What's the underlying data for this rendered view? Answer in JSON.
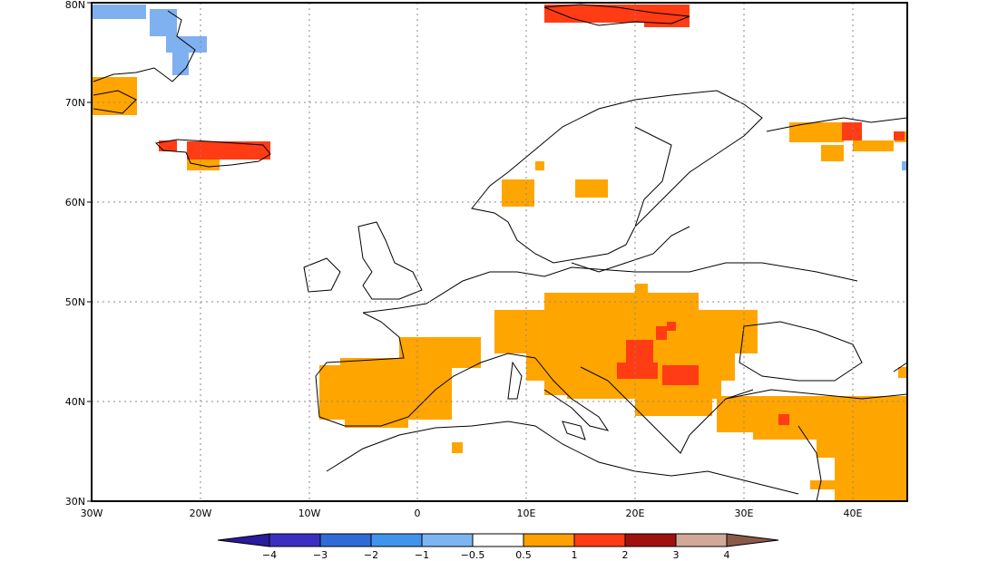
{
  "map": {
    "projection": "lat-lon",
    "lon_range": [
      -30,
      45
    ],
    "lat_range": [
      30,
      80
    ],
    "lat_ticks": [
      "80N",
      "70N",
      "60N",
      "50N",
      "40N",
      "30N"
    ],
    "lon_ticks": [
      "30W",
      "20W",
      "10W",
      "0",
      "10E",
      "20E",
      "30E",
      "40E"
    ],
    "gridlines": "dotted",
    "shaded_regions": [
      {
        "category": "-1",
        "color": "#7fb0f0",
        "description": "Greenland east coast"
      },
      {
        "category": "1",
        "color": "#ffa500",
        "description": "Iberian Peninsula"
      },
      {
        "category": "1",
        "color": "#ffa500",
        "description": "Southern France, Italy, Central & Eastern Europe, Balkans"
      },
      {
        "category": "1",
        "color": "#ffa500",
        "description": "Turkey & Middle East"
      },
      {
        "category": "1",
        "color": "#ffa500",
        "description": "Scandinavia patches"
      },
      {
        "category": "1",
        "color": "#ffa500",
        "description": "Northwest Russia"
      },
      {
        "category": "2",
        "color": "#ff3c14",
        "description": "Iceland"
      },
      {
        "category": "2",
        "color": "#ff3c14",
        "description": "Svalbard"
      },
      {
        "category": "2",
        "color": "#ff3c14",
        "description": "Balkans core"
      }
    ]
  },
  "colorbar": {
    "labels": [
      "−4",
      "−3",
      "−2",
      "−1",
      "−0.5",
      "0.5",
      "1",
      "2",
      "3",
      "4"
    ],
    "colors": [
      "#2a1a9c",
      "#3a5fd8",
      "#3a8de8",
      "#64a8f0",
      "#96c8f8",
      "#ffffff",
      "#ffa000",
      "#ff3c14",
      "#a01010",
      "#d2a898",
      "#8a5a48"
    ]
  }
}
